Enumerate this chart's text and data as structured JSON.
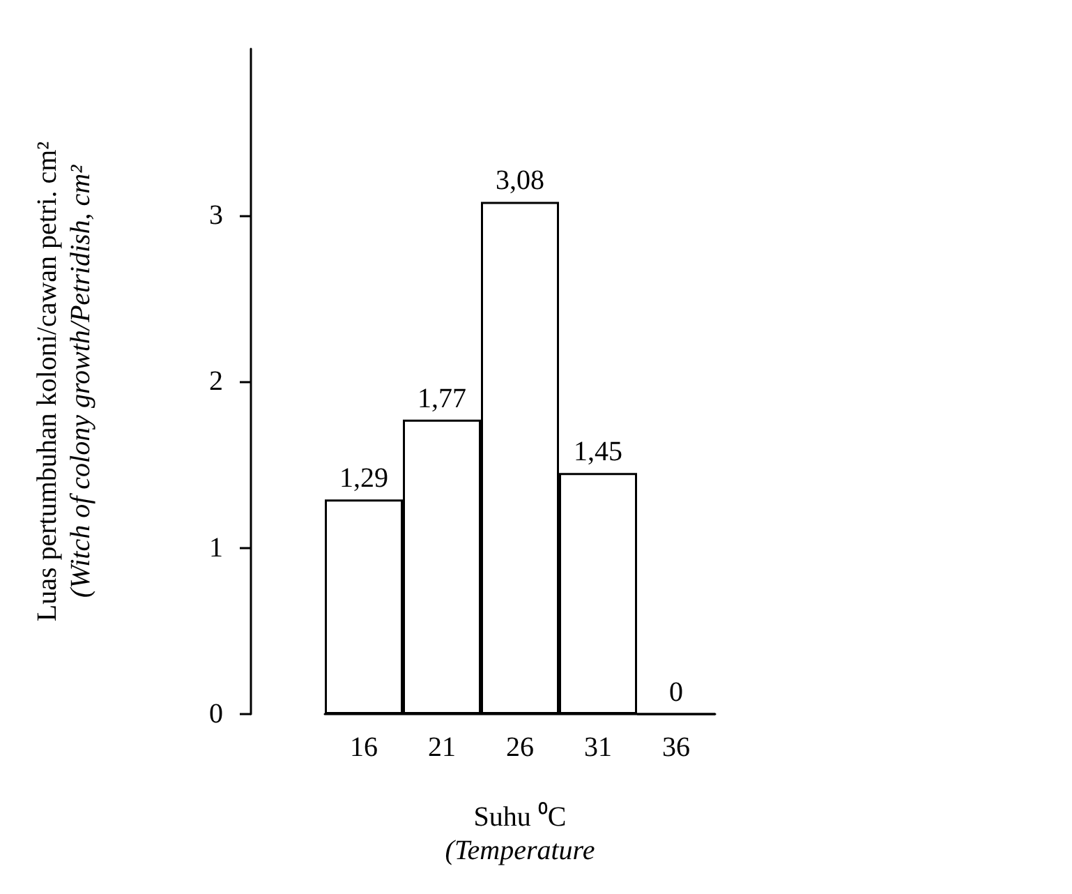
{
  "chart_data": {
    "type": "bar",
    "xlabel": "Suhu ⁰C\n(Temperature",
    "ylabel": "Luas pertumbuhan koloni/cawan petri. cm²\n(Witch of colony growth/Petridish, cm²",
    "categories": [
      "16",
      "21",
      "26",
      "31",
      "36"
    ],
    "values": [
      1.29,
      1.77,
      3.08,
      1.45,
      0
    ],
    "value_labels": [
      "1,29",
      "1,77",
      "3,08",
      "1,45",
      "0"
    ],
    "color": "#ffffff",
    "ylim": [
      0,
      4
    ],
    "yticks": [
      0,
      1,
      2,
      3
    ],
    "grid": false
  }
}
